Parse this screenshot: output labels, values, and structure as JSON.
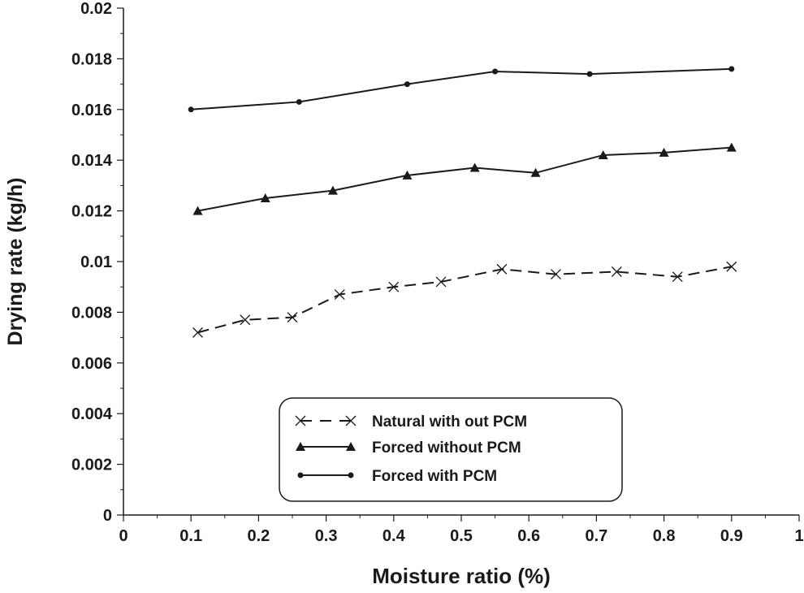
{
  "chart_data": {
    "type": "line",
    "title": "",
    "xlabel": "Moisture ratio (%)",
    "ylabel": "Drying rate (kg/h)",
    "xlim": [
      0,
      1
    ],
    "ylim": [
      0,
      0.02
    ],
    "xticks": [
      "0",
      "0.1",
      "0.2",
      "0.3",
      "0.4",
      "0.5",
      "0.6",
      "0.7",
      "0.8",
      "0.9",
      "1"
    ],
    "yticks": [
      "0",
      "0.002",
      "0.004",
      "0.006",
      "0.008",
      "0.01",
      "0.012",
      "0.014",
      "0.016",
      "0.018",
      "0.02"
    ],
    "grid": false,
    "legend_position": "bottom-center",
    "series": [
      {
        "name": "Natural with out PCM",
        "marker": "x",
        "line": "dashed",
        "color": "#1a1a1a",
        "x": [
          0.11,
          0.18,
          0.25,
          0.32,
          0.4,
          0.47,
          0.56,
          0.64,
          0.73,
          0.82,
          0.9
        ],
        "y": [
          0.0072,
          0.0077,
          0.0078,
          0.0087,
          0.009,
          0.0092,
          0.0097,
          0.0095,
          0.0096,
          0.0094,
          0.0098
        ]
      },
      {
        "name": "Forced without PCM",
        "marker": "triangle",
        "line": "solid",
        "color": "#1a1a1a",
        "x": [
          0.11,
          0.21,
          0.31,
          0.42,
          0.52,
          0.61,
          0.71,
          0.8,
          0.9
        ],
        "y": [
          0.012,
          0.0125,
          0.0128,
          0.0134,
          0.0137,
          0.0135,
          0.0142,
          0.0143,
          0.0145
        ]
      },
      {
        "name": "Forced with PCM",
        "marker": "circle",
        "line": "solid",
        "color": "#1a1a1a",
        "x": [
          0.1,
          0.26,
          0.42,
          0.55,
          0.69,
          0.9
        ],
        "y": [
          0.016,
          0.0163,
          0.017,
          0.0175,
          0.0174,
          0.0176
        ]
      }
    ]
  }
}
